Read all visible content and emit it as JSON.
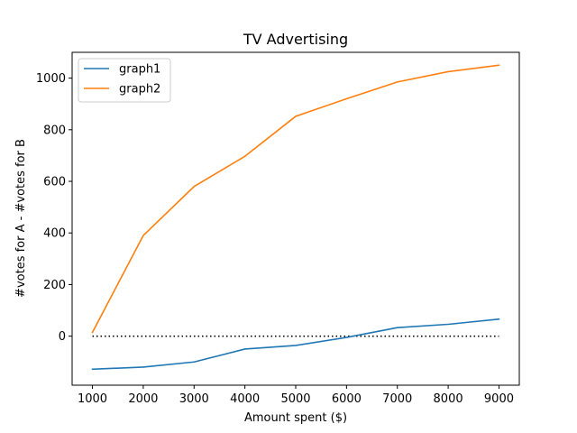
{
  "chart_data": {
    "type": "line",
    "title": "TV Advertising",
    "xlabel": "Amount spent ($)",
    "ylabel": "#votes for A - #votes for B",
    "x": [
      1000,
      2000,
      3000,
      4000,
      5000,
      6000,
      7000,
      8000,
      9000
    ],
    "xlim": [
      600,
      9400
    ],
    "ylim": [
      -190,
      1100
    ],
    "xticks": [
      1000,
      2000,
      3000,
      4000,
      5000,
      6000,
      7000,
      8000,
      9000
    ],
    "yticks": [
      0,
      200,
      400,
      600,
      800,
      1000
    ],
    "grid": false,
    "legend_position": "top-left",
    "series": [
      {
        "name": "graph1",
        "color": "#1f77b4",
        "values": [
          -128,
          -120,
          -100,
          -50,
          -36,
          -5,
          33,
          46,
          66
        ]
      },
      {
        "name": "graph2",
        "color": "#ff7f0e",
        "values": [
          15,
          390,
          580,
          697,
          852,
          920,
          985,
          1025,
          1050
        ]
      }
    ],
    "reference_line": {
      "y": 0,
      "x_start": 1000,
      "x_end": 9000,
      "color": "#000000",
      "style": "dotted"
    }
  }
}
